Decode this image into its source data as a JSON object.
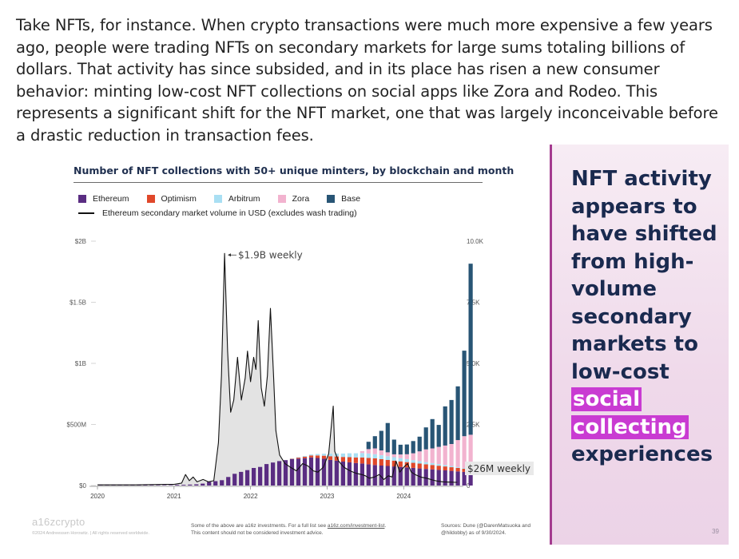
{
  "article": {
    "paragraph": "Take NFTs, for instance. When crypto transactions were much more expensive a few years ago, people were trading NFTs on secondary markets for large sums totaling billions of dollars. That activity has since subsided, and in its place has risen a new consumer behavior: minting low-cost NFT collections on social apps like Zora and Rodeo. This represents a significant shift for the NFT market, one that was largely inconceivable before a drastic reduction in transaction fees."
  },
  "callout": {
    "before": "NFT activity appears to have shifted from high-volume secondary markets to low-cost ",
    "highlight_1": "social",
    "highlight_2": "collecting",
    "after": "experiences"
  },
  "page_number": "39",
  "footer": {
    "brand": "a16zcrypto",
    "copyright": "©2024 Andreessen Horowitz. | All rights reserved worldwide.",
    "disclaimer_1": "Some of the above are a16z investments. For a full list see ",
    "disclaimer_link": "a16z.com/investment-list",
    "disclaimer_2": ".",
    "disclaimer_3": "This content should not be considered investment advice.",
    "sources_1": "Sources: Dune (@DarenMatsuoka and",
    "sources_2": "@hildobby) as of 9/30/2024."
  },
  "colors": {
    "Ethereum": "#5a2d82",
    "Optimism": "#e0482a",
    "Arbitrum": "#a9dff3",
    "Zora": "#f2b3cf",
    "Base": "#285575",
    "line": "#111111",
    "line_fill": "#e3e3e3",
    "accent_highlight": "#c93bd2",
    "panel_border": "#a43b8f"
  },
  "chart_data": {
    "type": "bar",
    "title": "Number of NFT collections with 50+ unique minters, by blockchain and month",
    "legend": [
      "Ethereum",
      "Optimism",
      "Arbitrum",
      "Zora",
      "Base"
    ],
    "line_legend": "Ethereum secondary market volume in USD (excludes wash trading)",
    "x_ticks": [
      "2020",
      "2021",
      "2022",
      "2023",
      "2024"
    ],
    "x_range": [
      2020.0,
      2024.78
    ],
    "left_axis": {
      "ticks": [
        "$0",
        "$500M",
        "$1B",
        "$1.5B",
        "$2B"
      ],
      "tick_values": [
        0,
        500,
        1000,
        1500,
        2000
      ],
      "range": [
        0,
        2000
      ],
      "unit": "USD millions (weekly volume)"
    },
    "right_axis": {
      "ticks": [
        "0",
        "2.5K",
        "5.0K",
        "7.5K",
        "10.0K"
      ],
      "tick_values": [
        0,
        2500,
        5000,
        7500,
        10000
      ],
      "range": [
        0,
        10000
      ]
    },
    "annotations": [
      {
        "text": "$1.9B weekly",
        "x": 2021.67,
        "y": 1900,
        "axis": "left"
      },
      {
        "text": "$26M weekly",
        "x": 2024.7,
        "y": 26,
        "axis": "left"
      }
    ],
    "bars": {
      "month_start": "2020-01",
      "Ethereum": [
        20,
        20,
        20,
        20,
        20,
        20,
        20,
        20,
        20,
        20,
        20,
        20,
        30,
        30,
        40,
        50,
        80,
        150,
        180,
        220,
        350,
        480,
        560,
        630,
        720,
        760,
        880,
        940,
        1000,
        1040,
        1080,
        1100,
        1120,
        1150,
        1130,
        1100,
        1050,
        1020,
        980,
        950,
        920,
        900,
        870,
        840,
        820,
        800,
        780,
        760,
        740,
        720,
        700,
        680,
        660,
        640,
        620,
        600,
        580,
        560,
        540
      ],
      "Optimism": [
        0,
        0,
        0,
        0,
        0,
        0,
        0,
        0,
        0,
        0,
        0,
        0,
        0,
        0,
        0,
        0,
        0,
        0,
        0,
        0,
        0,
        0,
        0,
        0,
        0,
        0,
        0,
        0,
        0,
        0,
        20,
        40,
        60,
        80,
        100,
        120,
        150,
        170,
        190,
        210,
        230,
        250,
        260,
        270,
        260,
        250,
        240,
        230,
        220,
        210,
        200,
        190,
        180,
        170,
        160,
        150,
        140,
        130,
        120
      ],
      "Arbitrum": [
        0,
        0,
        0,
        0,
        0,
        0,
        0,
        0,
        0,
        0,
        0,
        0,
        0,
        0,
        0,
        0,
        0,
        0,
        0,
        0,
        0,
        0,
        0,
        0,
        0,
        0,
        0,
        0,
        0,
        0,
        10,
        20,
        30,
        40,
        60,
        80,
        100,
        120,
        140,
        160,
        170,
        180,
        180,
        170,
        160,
        150,
        140,
        130,
        120,
        110,
        100,
        90,
        80,
        70,
        60,
        50,
        40,
        30,
        20
      ],
      "Zora": [
        0,
        0,
        0,
        0,
        0,
        0,
        0,
        0,
        0,
        0,
        0,
        0,
        0,
        0,
        0,
        0,
        0,
        0,
        0,
        0,
        0,
        0,
        0,
        0,
        0,
        0,
        0,
        0,
        0,
        0,
        0,
        0,
        0,
        0,
        0,
        0,
        0,
        0,
        0,
        0,
        0,
        80,
        180,
        240,
        200,
        160,
        120,
        150,
        200,
        280,
        400,
        520,
        600,
        700,
        800,
        900,
        1100,
        1300,
        1400
      ],
      "Base": [
        0,
        0,
        0,
        0,
        0,
        0,
        0,
        0,
        0,
        0,
        0,
        0,
        0,
        0,
        0,
        0,
        0,
        0,
        0,
        0,
        0,
        0,
        0,
        0,
        0,
        0,
        0,
        0,
        0,
        0,
        0,
        0,
        0,
        0,
        0,
        0,
        0,
        0,
        0,
        0,
        0,
        0,
        300,
        500,
        800,
        1200,
        600,
        400,
        400,
        500,
        600,
        900,
        1200,
        900,
        1600,
        1800,
        2200,
        3500,
        7000
      ]
    },
    "line": {
      "name": "Ethereum secondary market volume in USD (excludes wash trading)",
      "points": [
        [
          2020.0,
          5
        ],
        [
          2020.5,
          5
        ],
        [
          2020.9,
          10
        ],
        [
          2021.0,
          10
        ],
        [
          2021.1,
          20
        ],
        [
          2021.15,
          90
        ],
        [
          2021.2,
          40
        ],
        [
          2021.25,
          70
        ],
        [
          2021.3,
          30
        ],
        [
          2021.38,
          50
        ],
        [
          2021.45,
          30
        ],
        [
          2021.52,
          40
        ],
        [
          2021.58,
          350
        ],
        [
          2021.62,
          900
        ],
        [
          2021.66,
          1900
        ],
        [
          2021.7,
          1100
        ],
        [
          2021.74,
          600
        ],
        [
          2021.78,
          700
        ],
        [
          2021.83,
          1050
        ],
        [
          2021.88,
          700
        ],
        [
          2021.93,
          880
        ],
        [
          2021.96,
          1100
        ],
        [
          2022.0,
          850
        ],
        [
          2022.04,
          1050
        ],
        [
          2022.07,
          950
        ],
        [
          2022.1,
          1350
        ],
        [
          2022.14,
          800
        ],
        [
          2022.18,
          650
        ],
        [
          2022.22,
          900
        ],
        [
          2022.26,
          1450
        ],
        [
          2022.3,
          900
        ],
        [
          2022.33,
          450
        ],
        [
          2022.38,
          250
        ],
        [
          2022.45,
          180
        ],
        [
          2022.52,
          150
        ],
        [
          2022.6,
          120
        ],
        [
          2022.68,
          180
        ],
        [
          2022.75,
          160
        ],
        [
          2022.82,
          120
        ],
        [
          2022.88,
          110
        ],
        [
          2022.95,
          150
        ],
        [
          2023.02,
          260
        ],
        [
          2023.08,
          650
        ],
        [
          2023.1,
          280
        ],
        [
          2023.15,
          200
        ],
        [
          2023.22,
          150
        ],
        [
          2023.3,
          120
        ],
        [
          2023.38,
          100
        ],
        [
          2023.45,
          90
        ],
        [
          2023.5,
          80
        ],
        [
          2023.55,
          60
        ],
        [
          2023.62,
          70
        ],
        [
          2023.68,
          90
        ],
        [
          2023.74,
          50
        ],
        [
          2023.8,
          80
        ],
        [
          2023.85,
          70
        ],
        [
          2023.9,
          200
        ],
        [
          2023.95,
          110
        ],
        [
          2024.0,
          150
        ],
        [
          2024.05,
          180
        ],
        [
          2024.1,
          110
        ],
        [
          2024.15,
          90
        ],
        [
          2024.22,
          70
        ],
        [
          2024.3,
          60
        ],
        [
          2024.38,
          45
        ],
        [
          2024.45,
          35
        ],
        [
          2024.52,
          30
        ],
        [
          2024.6,
          28
        ],
        [
          2024.7,
          26
        ]
      ]
    }
  }
}
